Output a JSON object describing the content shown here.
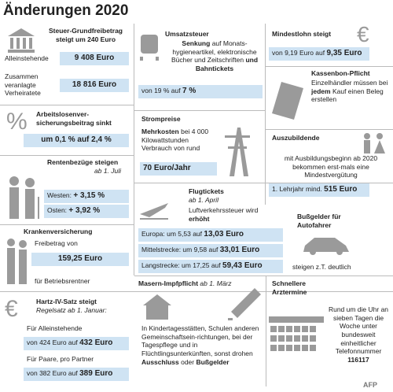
{
  "title": "Änderungen 2020",
  "grundfreibetrag": {
    "heading": "Steuer-Grundfreibetrag steigt um 240 Euro",
    "rows": [
      {
        "label": "Alleinstehende",
        "value": "9 408 Euro"
      },
      {
        "label": "Zusammen veranlagte Verheiratete",
        "value": "18 816 Euro"
      }
    ]
  },
  "umsatzsteuer": {
    "heading": "Umsatzsteuer",
    "bold1": "Senkung",
    "text": "auf Monats-hygieneartikel, elektronische Bücher und Zeitschriften",
    "bold2": "und Bahntickets",
    "box": {
      "text": "von 19 % auf",
      "bold": "7 %"
    }
  },
  "mindestlohn": {
    "heading": "Mindestlohn steigt",
    "box": {
      "text": "von 9,19 Euro auf",
      "bold": "9,35 Euro"
    }
  },
  "arbeitslosen": {
    "heading": "Arbeitslosenver-sicherungsbeitrag sinkt",
    "box": "um 0,1 % auf 2,4 %"
  },
  "kassenbon": {
    "heading": "Kassenbon-Pflicht",
    "text1": "Einzelhändler müssen bei",
    "bold": "jedem",
    "text2": "Kauf einen Beleg erstellen"
  },
  "strom": {
    "heading": "Strompreise",
    "bold": "Mehrkosten",
    "text": "bei 4 000 Kilowattstunden Verbrauch von rund",
    "box": "70 Euro/Jahr"
  },
  "azubi": {
    "heading": "Auszubildende",
    "text": "mit Ausbildungsbeginn ab 2020 bekommen erst-mals eine Mindestvergütung",
    "box": {
      "text": "1. Lehrjahr mind.",
      "bold": "515 Euro"
    }
  },
  "rente": {
    "heading": "Rentenbezüge steigen",
    "date": "ab 1. Juli",
    "rows": [
      {
        "label": "Westen:",
        "value": "+ 3,15 %"
      },
      {
        "label": "Osten:",
        "value": "+ 3,92 %"
      }
    ]
  },
  "flug": {
    "heading": "Flugtickets",
    "date": "ab 1. April",
    "text": "Luftverkehrssteuer wird",
    "bold": "erhöht",
    "rows": [
      {
        "text": "Europa: um 5,53 auf",
        "bold": "13,03 Euro"
      },
      {
        "text": "Mittelstrecke: um 9,58 auf",
        "bold": "33,01 Euro"
      },
      {
        "text": "Langstrecke: um 17,25 auf",
        "bold": "59,43 Euro"
      }
    ]
  },
  "bussgeld": {
    "heading": "Bußgelder für Autofahrer",
    "text": "steigen z.T. deutlich"
  },
  "kranken": {
    "heading": "Krankenversicherung",
    "text1": "Freibetrag von",
    "box": "159,25 Euro",
    "text2": "für Betriebsrentner"
  },
  "masern": {
    "heading": "Masern-Impfpflicht",
    "date": "ab 1. März",
    "text": "In Kindertagesstätten, Schulen anderen Gemeinschaftsein-richtungen, bei der Tagespflege und in Flüchtlingsunterkünften, sonst drohen",
    "bold1": "Ausschluss",
    "text2": "oder",
    "bold2": "Bußgelder"
  },
  "arzt": {
    "heading": "Schnellere Arztermine",
    "text": "Rund um die Uhr an sieben Tagen die Woche unter bundesweit einheitlicher Telefonnummer",
    "bold": "116117"
  },
  "hartz": {
    "heading": "Hartz-IV-Satz steigt",
    "date": "Regelsatz ab 1. Januar:",
    "groups": [
      {
        "label": "Für Alleinstehende",
        "text": "von 424 Euro auf",
        "bold": "432 Euro"
      },
      {
        "label": "Für Paare, pro Partner",
        "text": "von 382 Euro auf",
        "bold": "389 Euro"
      }
    ]
  },
  "source": "AFP"
}
